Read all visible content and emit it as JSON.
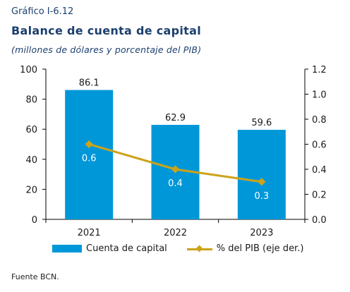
{
  "header": {
    "figure_number": "Gráfico I-6.12",
    "title": "Balance de cuenta de capital",
    "subtitle": "(millones de dólares y porcentaje del PIB)"
  },
  "chart_data": {
    "type": "bar",
    "categories": [
      "2021",
      "2022",
      "2023"
    ],
    "series": [
      {
        "name": "Cuenta de capital",
        "type": "bar",
        "axis": "left",
        "values": [
          86.1,
          62.9,
          59.6
        ],
        "labels": [
          "86.1",
          "62.9",
          "59.6"
        ],
        "color": "#0097d9"
      },
      {
        "name": "% del PIB (eje der.)",
        "type": "line",
        "axis": "right",
        "values": [
          0.6,
          0.4,
          0.3
        ],
        "labels": [
          "0.6",
          "0.4",
          "0.3"
        ],
        "color": "#cca319"
      }
    ],
    "y_left": {
      "min": 0,
      "max": 100,
      "ticks": [
        "0",
        "20",
        "40",
        "60",
        "80",
        "100"
      ]
    },
    "y_right": {
      "min": 0,
      "max": 1.2,
      "ticks": [
        "0.0",
        "0.2",
        "0.4",
        "0.6",
        "0.8",
        "1.0",
        "1.2"
      ]
    },
    "grid": false,
    "legend_position": "bottom"
  },
  "source": "Fuente BCN."
}
